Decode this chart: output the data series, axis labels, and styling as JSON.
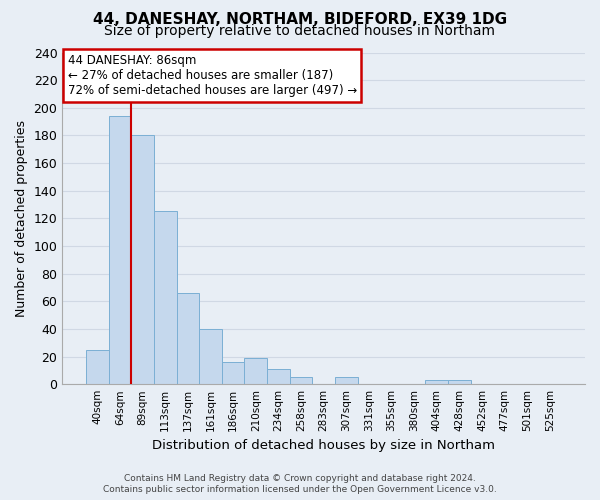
{
  "title": "44, DANESHAY, NORTHAM, BIDEFORD, EX39 1DG",
  "subtitle": "Size of property relative to detached houses in Northam",
  "xlabel": "Distribution of detached houses by size in Northam",
  "ylabel": "Number of detached properties",
  "bin_labels": [
    "40sqm",
    "64sqm",
    "89sqm",
    "113sqm",
    "137sqm",
    "161sqm",
    "186sqm",
    "210sqm",
    "234sqm",
    "258sqm",
    "283sqm",
    "307sqm",
    "331sqm",
    "355sqm",
    "380sqm",
    "404sqm",
    "428sqm",
    "452sqm",
    "477sqm",
    "501sqm",
    "525sqm"
  ],
  "bar_heights": [
    25,
    194,
    180,
    125,
    66,
    40,
    16,
    19,
    11,
    5,
    0,
    5,
    0,
    0,
    0,
    3,
    3,
    0,
    0,
    0,
    0
  ],
  "bar_color": "#c5d8ed",
  "bar_edge_color": "#7bafd4",
  "annotation_line1": "44 DANESHAY: 86sqm",
  "annotation_line2": "← 27% of detached houses are smaller (187)",
  "annotation_line3": "72% of semi-detached houses are larger (497) →",
  "annotation_box_color": "#ffffff",
  "annotation_box_edge": "#cc0000",
  "ylim": [
    0,
    240
  ],
  "yticks": [
    0,
    20,
    40,
    60,
    80,
    100,
    120,
    140,
    160,
    180,
    200,
    220,
    240
  ],
  "footer_line1": "Contains HM Land Registry data © Crown copyright and database right 2024.",
  "footer_line2": "Contains public sector information licensed under the Open Government Licence v3.0.",
  "background_color": "#e8eef5",
  "grid_color": "#d0d8e4",
  "title_fontsize": 11,
  "subtitle_fontsize": 10,
  "red_line_index": 1.5
}
